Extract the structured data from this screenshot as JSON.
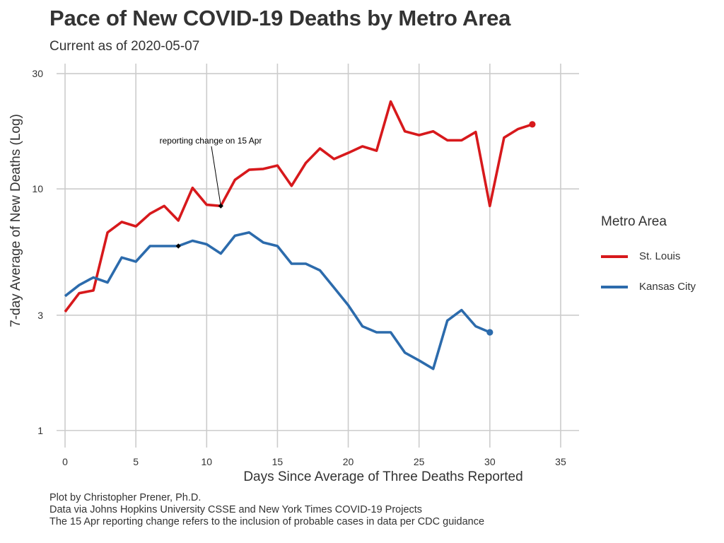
{
  "chart_data": {
    "type": "line",
    "title": "Pace of New COVID-19 Deaths by Metro Area",
    "subtitle": "Current as of 2020-05-07",
    "xlabel": "Days Since Average of Three Deaths Reported",
    "ylabel": "7-day Average of New Deaths (Log)",
    "y_scale": "log",
    "xlim": [
      -0.6,
      36.3
    ],
    "ylim": [
      0.85,
      33
    ],
    "x_ticks": [
      0,
      5,
      10,
      15,
      20,
      25,
      30,
      35
    ],
    "y_ticks": [
      1,
      3,
      10,
      30
    ],
    "grid": true,
    "legend_title": "Metro Area",
    "legend_position": "right",
    "series": [
      {
        "name": "St. Louis",
        "color": "#d7191c",
        "x": [
          0,
          1,
          2,
          3,
          4,
          5,
          6,
          7,
          8,
          9,
          10,
          11,
          12,
          13,
          14,
          15,
          16,
          17,
          18,
          19,
          20,
          21,
          22,
          23,
          24,
          25,
          26,
          27,
          28,
          29,
          30,
          31,
          32,
          33
        ],
        "values": [
          3.1,
          3.7,
          3.8,
          6.6,
          7.3,
          7.0,
          7.9,
          8.5,
          7.4,
          10.1,
          8.6,
          8.5,
          10.9,
          12.0,
          12.1,
          12.5,
          10.3,
          12.8,
          14.7,
          13.3,
          14.1,
          15.0,
          14.4,
          23.0,
          17.3,
          16.7,
          17.3,
          15.9,
          15.9,
          17.2,
          8.5,
          16.3,
          17.7,
          18.5
        ]
      },
      {
        "name": "Kansas City",
        "color": "#2c6bac",
        "x": [
          0,
          1,
          2,
          3,
          4,
          5,
          6,
          7,
          8,
          9,
          10,
          11,
          12,
          13,
          14,
          15,
          16,
          17,
          18,
          19,
          20,
          21,
          22,
          23,
          24,
          25,
          26,
          27,
          28,
          29,
          30
        ],
        "values": [
          3.6,
          4.0,
          4.3,
          4.1,
          5.2,
          5.0,
          5.8,
          5.8,
          5.8,
          6.1,
          5.9,
          5.4,
          6.4,
          6.6,
          6.0,
          5.8,
          4.9,
          4.9,
          4.6,
          3.9,
          3.3,
          2.7,
          2.55,
          2.55,
          2.1,
          1.95,
          1.8,
          2.85,
          3.15,
          2.7,
          2.55
        ]
      }
    ],
    "highlight_points": [
      {
        "series": "St. Louis",
        "x": 11,
        "y": 8.5
      },
      {
        "series": "Kansas City",
        "x": 8,
        "y": 5.8
      }
    ],
    "annotations": [
      {
        "text": "reporting change on 15 Apr",
        "x": 11,
        "y": 8.5
      }
    ],
    "caption": [
      "Plot by Christopher Prener, Ph.D.",
      "Data via Johns Hopkins University CSSE and New York Times COVID-19 Projects",
      "The 15 Apr reporting change refers to the inclusion of probable cases in data per CDC guidance"
    ]
  }
}
